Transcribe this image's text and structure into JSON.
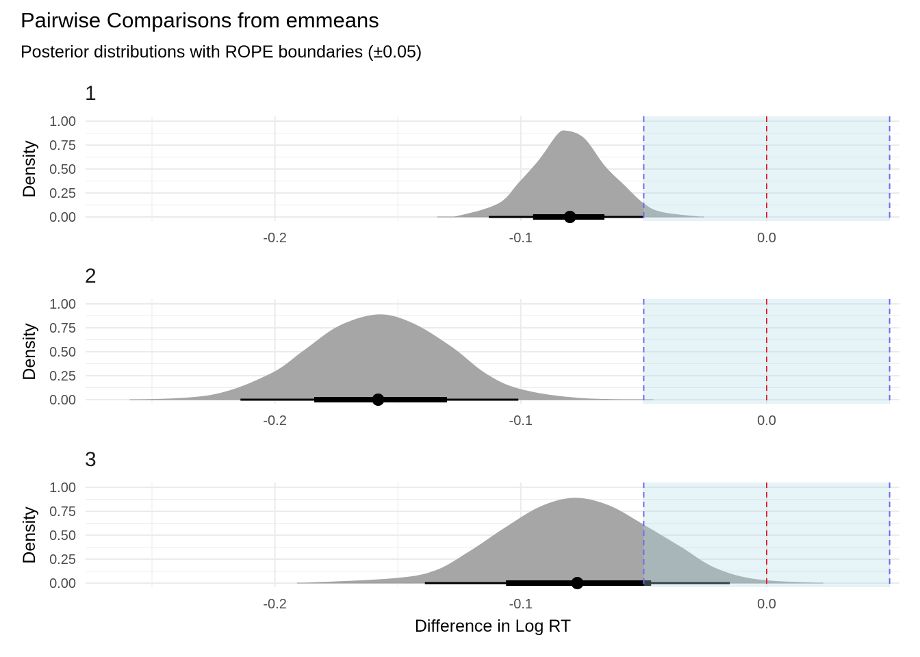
{
  "chart_data": {
    "type": "area",
    "title": "Pairwise Comparisons from emmeans",
    "subtitle": "Posterior distributions with ROPE boundaries (±0.05)",
    "xlabel": "Difference in Log RT",
    "ylabel": "Density",
    "xlim": [
      -0.277,
      0.054
    ],
    "ylim": [
      0,
      1
    ],
    "x_ticks": [
      -0.2,
      -0.1,
      0.0
    ],
    "x_tick_labels": [
      "-0.2",
      "-0.1",
      "0.0"
    ],
    "y_ticks": [
      0,
      0.25,
      0.5,
      0.75,
      1
    ],
    "y_tick_labels": [
      "0.00",
      "0.25",
      "0.50",
      "0.75",
      "1.00"
    ],
    "grid": true,
    "rope": {
      "low": -0.05,
      "high": 0.05,
      "fill": "#add8e6",
      "boundary_color": "#6b6bf0"
    },
    "null_line": {
      "x": 0.0,
      "color": "#e0202a"
    },
    "density_fill": "#a6a6a6",
    "panels": [
      {
        "label": "1",
        "density": {
          "x": [
            -0.134,
            -0.1259,
            -0.1092,
            -0.1008,
            -0.0925,
            -0.0852,
            -0.0813,
            -0.0741,
            -0.0657,
            -0.0582,
            -0.0499,
            -0.0423,
            -0.0256
          ],
          "y": [
            0,
            0.01,
            0.14,
            0.36,
            0.6,
            0.86,
            0.9,
            0.82,
            0.53,
            0.34,
            0.14,
            0.05,
            0
          ]
        },
        "point": -0.08,
        "interval_outer": [
          -0.113,
          -0.05
        ],
        "interval_inner": [
          -0.095,
          -0.066
        ]
      },
      {
        "label": "2",
        "density": {
          "x": [
            -0.259,
            -0.226,
            -0.202,
            -0.188,
            -0.174,
            -0.158,
            -0.144,
            -0.128,
            -0.114,
            -0.1,
            -0.077,
            -0.046
          ],
          "y": [
            0,
            0.05,
            0.27,
            0.52,
            0.77,
            0.89,
            0.8,
            0.55,
            0.27,
            0.11,
            0.02,
            0
          ]
        },
        "point": -0.158,
        "interval_outer": [
          -0.214,
          -0.101
        ],
        "interval_inner": [
          -0.184,
          -0.13
        ]
      },
      {
        "label": "3",
        "density": {
          "x": [
            -0.191,
            -0.152,
            -0.135,
            -0.121,
            -0.107,
            -0.092,
            -0.078,
            -0.064,
            -0.05,
            -0.035,
            -0.021,
            -0.004,
            0.023
          ],
          "y": [
            0,
            0.05,
            0.13,
            0.33,
            0.57,
            0.8,
            0.89,
            0.81,
            0.61,
            0.38,
            0.16,
            0.04,
            0
          ]
        },
        "point": -0.077,
        "interval_outer": [
          -0.139,
          -0.015
        ],
        "interval_inner": [
          -0.106,
          -0.047
        ]
      }
    ]
  }
}
